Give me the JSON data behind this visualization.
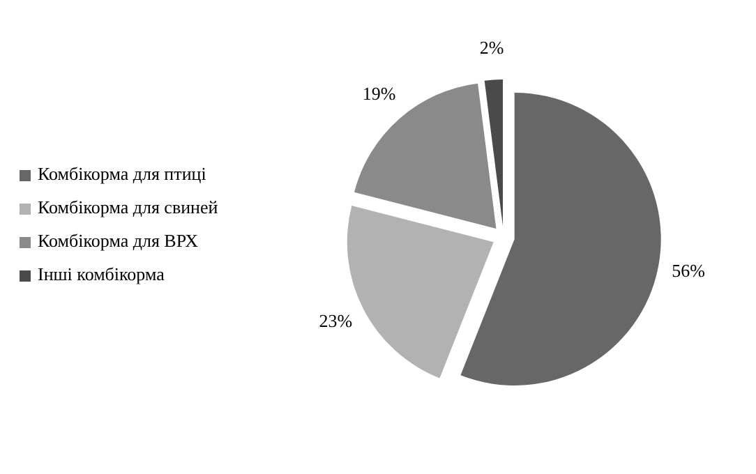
{
  "chart_data": {
    "type": "pie",
    "categories": [
      "Комбікорма для птиці",
      "Комбікорма для свиней",
      "Комбікорма для ВРХ",
      "Інші комбікорма"
    ],
    "values": [
      56,
      23,
      19,
      2
    ],
    "value_labels": [
      "56%",
      "23%",
      "19%",
      "2%"
    ],
    "colors": [
      "#676767",
      "#b2b2b2",
      "#8a8a8a",
      "#4a4a4a"
    ],
    "legend": "left"
  }
}
